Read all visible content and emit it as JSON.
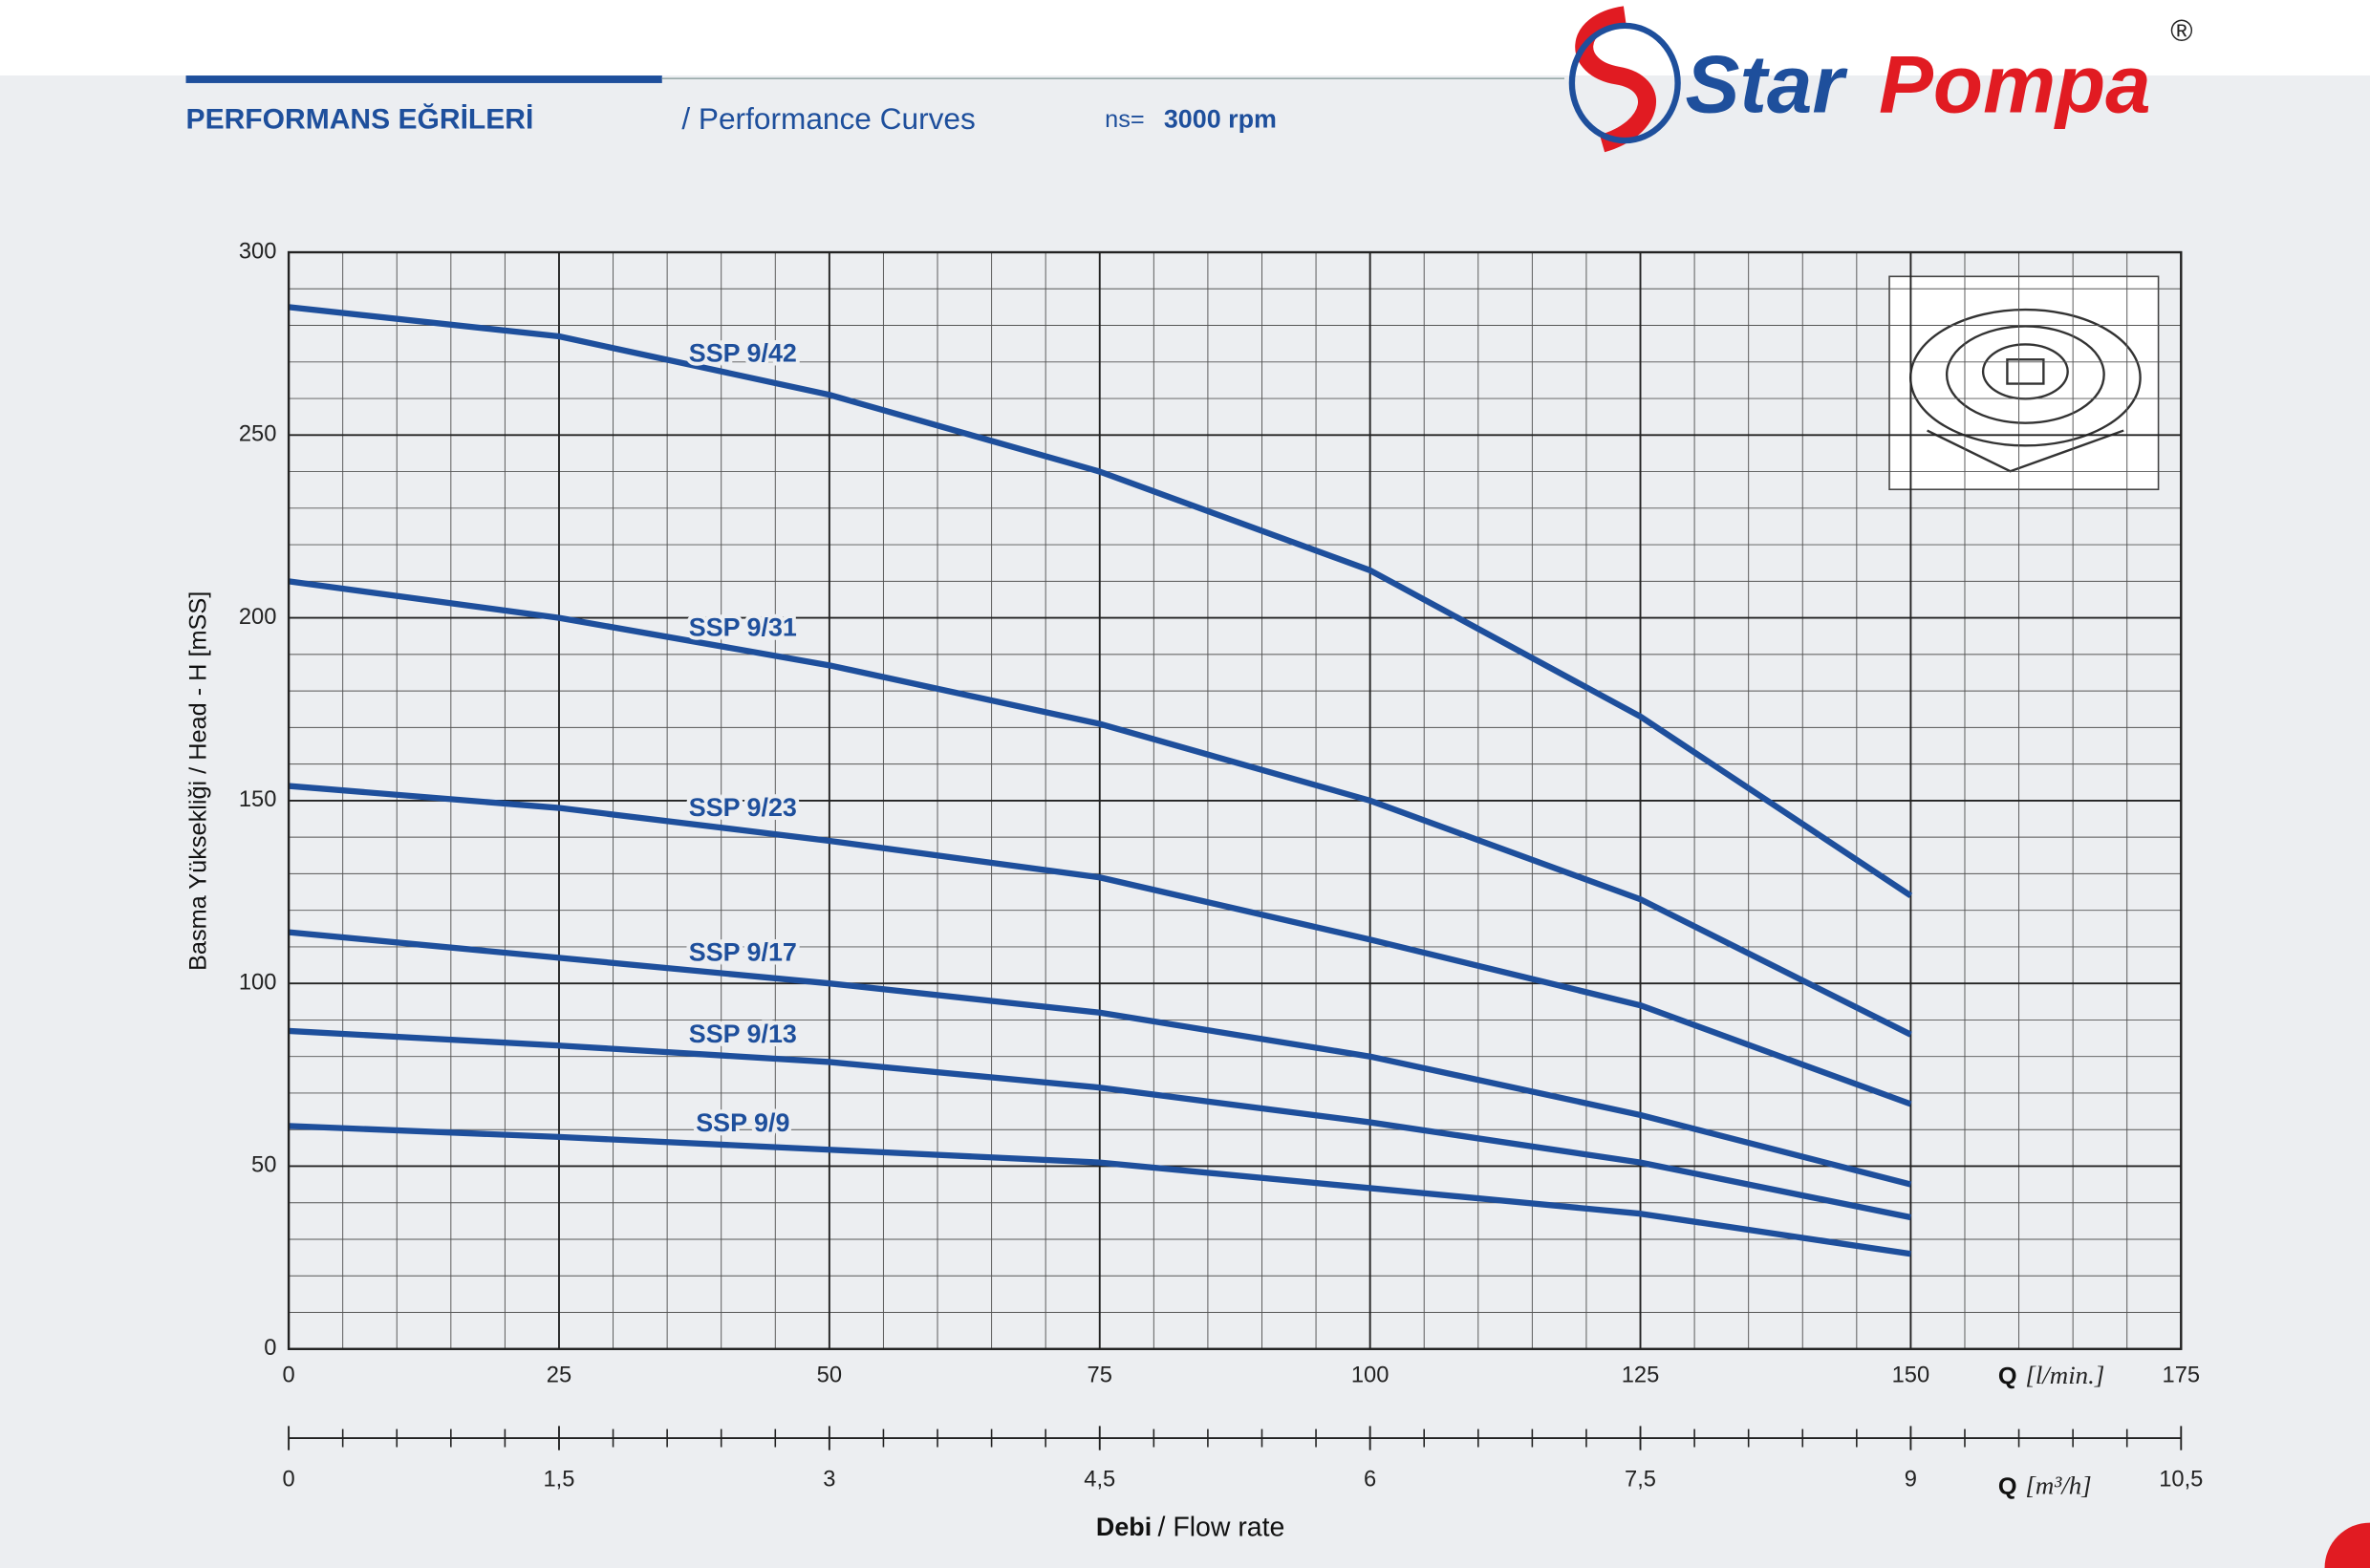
{
  "header": {
    "title_tr": "PERFORMANS EĞRİLERİ",
    "title_en": "/ Performance Curves",
    "speed_label": "ns=",
    "speed": "3000 rpm"
  },
  "logo": {
    "text_1": "Star",
    "text_2": "Pompa",
    "mark": "®"
  },
  "chart_data": {
    "type": "line",
    "y_label": "Basma Yüksekliği / Head - H [mSS]",
    "x_label_symbol": "Q",
    "x_label_unit": "[l/min.]",
    "x2_label_symbol": "Q",
    "x2_label_unit": "[m³/h]",
    "footer_label_tr": "Debi",
    "footer_label_en": "/ Flow rate",
    "x": [
      0,
      25,
      50,
      75,
      100,
      125,
      150
    ],
    "xlim": [
      0,
      175
    ],
    "xticks": [
      0,
      25,
      50,
      75,
      100,
      125,
      150,
      175
    ],
    "x2lim": [
      0,
      10.5
    ],
    "x2ticks": [
      0,
      {
        "value": 1.5,
        "label": "1,5"
      },
      3,
      {
        "value": 4.5,
        "label": "4,5"
      },
      6,
      {
        "value": 7.5,
        "label": "7,5"
      },
      9,
      {
        "value": 10.5,
        "label": "10,5"
      }
    ],
    "ylim": [
      0,
      300
    ],
    "yticks": [
      0,
      50,
      100,
      150,
      200,
      250,
      300
    ],
    "grid": true,
    "series": [
      {
        "name": "SSP 9/42",
        "color": "#1e4f9c",
        "values": [
          285,
          277,
          261,
          240,
          213,
          173,
          124
        ]
      },
      {
        "name": "SSP 9/31",
        "color": "#1e4f9c",
        "values": [
          210,
          200,
          187,
          171,
          150,
          123,
          86
        ]
      },
      {
        "name": "SSP 9/23",
        "color": "#1e4f9c",
        "values": [
          154,
          148,
          139,
          129,
          112,
          94,
          67
        ]
      },
      {
        "name": "SSP 9/17",
        "color": "#1e4f9c",
        "values": [
          114,
          107,
          100,
          92,
          80,
          64,
          45
        ]
      },
      {
        "name": "SSP 9/13",
        "color": "#1e4f9c",
        "values": [
          87,
          83,
          78.5,
          71.5,
          62,
          51,
          36
        ]
      },
      {
        "name": "SSP 9/9",
        "color": "#1e4f9c",
        "values": [
          61,
          58,
          54.5,
          51,
          44,
          37,
          26
        ]
      }
    ]
  }
}
